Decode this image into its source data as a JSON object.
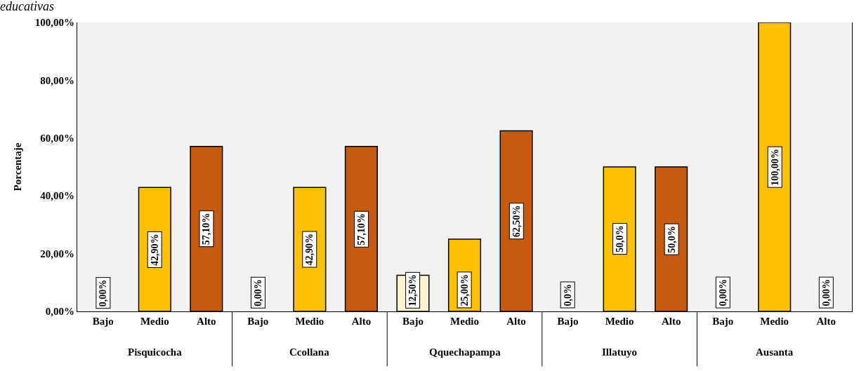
{
  "chart_data": {
    "type": "bar",
    "title": "educativas",
    "ylabel": "Porcentaje",
    "categories": [
      "Bajo",
      "Medio",
      "Alto",
      "Bajo",
      "Medio",
      "Alto",
      "Bajo",
      "Medio",
      "Alto",
      "Bajo",
      "Medio",
      "Alto",
      "Bajo",
      "Medio",
      "Alto"
    ],
    "values": [
      0,
      42.9,
      57.1,
      0,
      42.9,
      57.1,
      12.5,
      25,
      62.5,
      0,
      50,
      50,
      0,
      100,
      0
    ],
    "colors": [
      "#fff2cc",
      "#ffc000",
      "#c55a11",
      "#fff2cc",
      "#ffc000",
      "#c55a11",
      "#fff2cc",
      "#ffc000",
      "#c55a11",
      "#fff2cc",
      "#ffc000",
      "#c55a11",
      "#fff2cc",
      "#ffc000",
      "#c55a11"
    ],
    "value_labels": [
      "0,00%",
      "42,90%",
      "57,10%",
      "0,00%",
      "42,90%",
      "57,10%",
      "12,50%",
      "25,00%",
      "62,50%",
      "0,0%",
      "50,0%",
      "50,0%",
      "0,00%",
      "100,00%",
      "0,00%"
    ],
    "annotations": [
      "Pisquicocha",
      "Ccollana",
      "Qquechapampa",
      "Illatuyo",
      "Ausanta"
    ],
    "ylim": [
      0,
      100
    ],
    "yticks": [
      {
        "value": 0,
        "label": "0,00%"
      },
      {
        "value": 20,
        "label": "20,00%"
      },
      {
        "value": 40,
        "label": "40,00%"
      },
      {
        "value": 60,
        "label": "60,00%"
      },
      {
        "value": 80,
        "label": "80,00%"
      },
      {
        "value": 100,
        "label": "100,00%"
      }
    ],
    "grid": false,
    "legend": false
  }
}
